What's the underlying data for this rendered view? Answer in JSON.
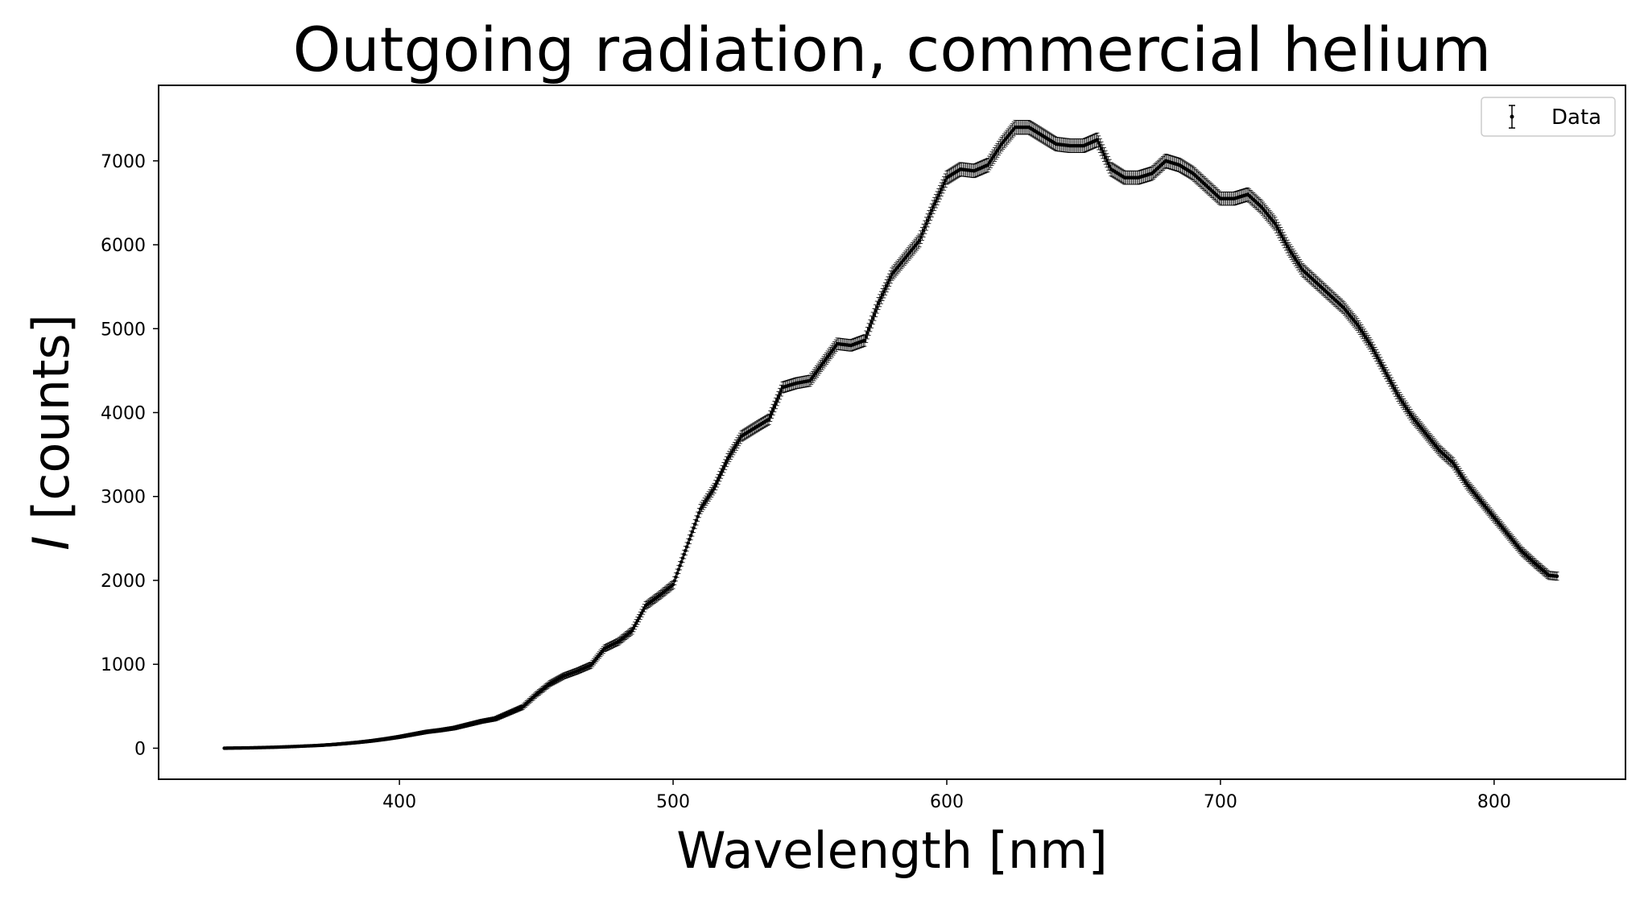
{
  "chart_data": {
    "type": "scatter",
    "title": "Outgoing radiation, commercial helium",
    "xlabel_main": "Wavelength [nm]",
    "ylabel_italic": "I",
    "ylabel_rest": " [counts]",
    "xlim": [
      312,
      848
    ],
    "ylim": [
      -370,
      7900
    ],
    "xticks": [
      400,
      500,
      600,
      700,
      800
    ],
    "yticks": [
      0,
      1000,
      2000,
      3000,
      4000,
      5000,
      6000,
      7000
    ],
    "xtick_labels": [
      "400",
      "500",
      "600",
      "700",
      "800"
    ],
    "ytick_labels": [
      "0",
      "1000",
      "2000",
      "3000",
      "4000",
      "5000",
      "6000",
      "7000"
    ],
    "legend": {
      "label": "Data",
      "position": "top-right"
    },
    "series": [
      {
        "name": "Data",
        "marker": "point-with-errorbar",
        "color": "#000000",
        "x_start": 336,
        "x_end": 823,
        "x_step": 0.5,
        "points": [
          [
            336,
            0
          ],
          [
            340,
            2
          ],
          [
            345,
            4
          ],
          [
            350,
            8
          ],
          [
            355,
            12
          ],
          [
            360,
            18
          ],
          [
            365,
            25
          ],
          [
            370,
            32
          ],
          [
            375,
            42
          ],
          [
            380,
            55
          ],
          [
            385,
            70
          ],
          [
            390,
            88
          ],
          [
            395,
            110
          ],
          [
            400,
            135
          ],
          [
            405,
            165
          ],
          [
            410,
            195
          ],
          [
            415,
            215
          ],
          [
            420,
            240
          ],
          [
            425,
            280
          ],
          [
            430,
            320
          ],
          [
            435,
            350
          ],
          [
            440,
            420
          ],
          [
            445,
            490
          ],
          [
            450,
            640
          ],
          [
            455,
            770
          ],
          [
            460,
            860
          ],
          [
            465,
            920
          ],
          [
            470,
            990
          ],
          [
            475,
            1190
          ],
          [
            480,
            1270
          ],
          [
            485,
            1400
          ],
          [
            490,
            1700
          ],
          [
            495,
            1820
          ],
          [
            500,
            1950
          ],
          [
            505,
            2400
          ],
          [
            510,
            2850
          ],
          [
            515,
            3100
          ],
          [
            520,
            3450
          ],
          [
            525,
            3720
          ],
          [
            530,
            3820
          ],
          [
            535,
            3920
          ],
          [
            540,
            4300
          ],
          [
            545,
            4350
          ],
          [
            550,
            4380
          ],
          [
            555,
            4600
          ],
          [
            560,
            4820
          ],
          [
            565,
            4800
          ],
          [
            570,
            4860
          ],
          [
            575,
            5300
          ],
          [
            580,
            5650
          ],
          [
            585,
            5850
          ],
          [
            590,
            6050
          ],
          [
            595,
            6450
          ],
          [
            600,
            6800
          ],
          [
            605,
            6900
          ],
          [
            610,
            6880
          ],
          [
            615,
            6950
          ],
          [
            620,
            7200
          ],
          [
            625,
            7400
          ],
          [
            630,
            7400
          ],
          [
            635,
            7300
          ],
          [
            640,
            7200
          ],
          [
            645,
            7180
          ],
          [
            650,
            7180
          ],
          [
            655,
            7250
          ],
          [
            660,
            6900
          ],
          [
            665,
            6800
          ],
          [
            670,
            6800
          ],
          [
            675,
            6850
          ],
          [
            680,
            7000
          ],
          [
            685,
            6950
          ],
          [
            690,
            6850
          ],
          [
            695,
            6700
          ],
          [
            700,
            6550
          ],
          [
            705,
            6550
          ],
          [
            710,
            6600
          ],
          [
            715,
            6450
          ],
          [
            720,
            6250
          ],
          [
            725,
            5950
          ],
          [
            730,
            5700
          ],
          [
            735,
            5550
          ],
          [
            740,
            5400
          ],
          [
            745,
            5250
          ],
          [
            750,
            5050
          ],
          [
            755,
            4800
          ],
          [
            760,
            4500
          ],
          [
            765,
            4200
          ],
          [
            770,
            3950
          ],
          [
            775,
            3750
          ],
          [
            780,
            3550
          ],
          [
            785,
            3400
          ],
          [
            790,
            3150
          ],
          [
            795,
            2950
          ],
          [
            800,
            2750
          ],
          [
            805,
            2550
          ],
          [
            810,
            2350
          ],
          [
            815,
            2200
          ],
          [
            820,
            2060
          ],
          [
            823,
            2050
          ]
        ]
      }
    ]
  }
}
